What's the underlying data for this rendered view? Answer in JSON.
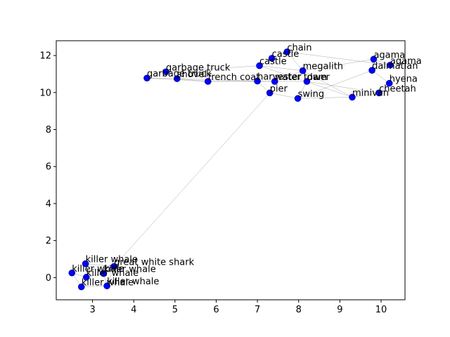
{
  "chart_data": {
    "type": "scatter",
    "title": "",
    "xlabel": "",
    "ylabel": "",
    "xlim": [
      2.12,
      10.58
    ],
    "ylim": [
      -1.2,
      12.8
    ],
    "xticks": [
      3,
      4,
      5,
      6,
      7,
      8,
      9,
      10
    ],
    "yticks": [
      0,
      2,
      4,
      6,
      8,
      10,
      12
    ],
    "grid": false,
    "colors": {
      "point": "#0000ff",
      "edge": "#999999"
    },
    "points": [
      {
        "label": "killer whale",
        "x": 2.83,
        "y": 0.75
      },
      {
        "label": "killer whale",
        "x": 2.5,
        "y": 0.25
      },
      {
        "label": "killer whale",
        "x": 2.85,
        "y": 0.02
      },
      {
        "label": "killer whale",
        "x": 3.27,
        "y": 0.22
      },
      {
        "label": "killer whale",
        "x": 2.73,
        "y": -0.5
      },
      {
        "label": "killer whale",
        "x": 3.35,
        "y": -0.45
      },
      {
        "label": "great white shark",
        "x": 3.52,
        "y": 0.6
      },
      {
        "label": "garbage truck",
        "x": 4.78,
        "y": 11.12
      },
      {
        "label": "garbage truck",
        "x": 4.32,
        "y": 10.78
      },
      {
        "label": "shovel",
        "x": 5.05,
        "y": 10.75
      },
      {
        "label": "french coat",
        "x": 5.8,
        "y": 10.6
      },
      {
        "label": "harvester",
        "x": 7.0,
        "y": 10.62
      },
      {
        "label": "castle",
        "x": 7.05,
        "y": 11.45
      },
      {
        "label": "castle",
        "x": 7.35,
        "y": 11.85
      },
      {
        "label": "chain",
        "x": 7.72,
        "y": 12.2
      },
      {
        "label": "pier",
        "x": 7.3,
        "y": 9.98
      },
      {
        "label": "water tower",
        "x": 7.42,
        "y": 10.6
      },
      {
        "label": "megalith",
        "x": 8.1,
        "y": 11.18
      },
      {
        "label": "dam",
        "x": 8.2,
        "y": 10.6
      },
      {
        "label": "swing",
        "x": 7.98,
        "y": 9.68
      },
      {
        "label": "minivan",
        "x": 9.3,
        "y": 9.75
      },
      {
        "label": "agama",
        "x": 9.82,
        "y": 11.8
      },
      {
        "label": "agama",
        "x": 10.22,
        "y": 11.48
      },
      {
        "label": "dalmatian",
        "x": 9.78,
        "y": 11.2
      },
      {
        "label": "hyena",
        "x": 10.2,
        "y": 10.5
      },
      {
        "label": "cheetah",
        "x": 9.95,
        "y": 9.98
      }
    ],
    "edges": [
      [
        0,
        1
      ],
      [
        0,
        2
      ],
      [
        0,
        3
      ],
      [
        1,
        2
      ],
      [
        1,
        4
      ],
      [
        2,
        3
      ],
      [
        2,
        4
      ],
      [
        3,
        5
      ],
      [
        4,
        5
      ],
      [
        3,
        6
      ],
      [
        5,
        6
      ],
      [
        0,
        6
      ],
      [
        6,
        15
      ],
      [
        7,
        8
      ],
      [
        7,
        9
      ],
      [
        8,
        9
      ],
      [
        8,
        10
      ],
      [
        9,
        10
      ],
      [
        9,
        11
      ],
      [
        10,
        11
      ],
      [
        7,
        12
      ],
      [
        10,
        16
      ],
      [
        11,
        15
      ],
      [
        11,
        16
      ],
      [
        12,
        13
      ],
      [
        13,
        14
      ],
      [
        12,
        17
      ],
      [
        14,
        17
      ],
      [
        15,
        16
      ],
      [
        15,
        19
      ],
      [
        16,
        17
      ],
      [
        16,
        18
      ],
      [
        17,
        18
      ],
      [
        18,
        19
      ],
      [
        17,
        20
      ],
      [
        19,
        20
      ],
      [
        18,
        25
      ],
      [
        17,
        21
      ],
      [
        14,
        22
      ],
      [
        21,
        22
      ],
      [
        21,
        23
      ],
      [
        22,
        23
      ],
      [
        23,
        24
      ],
      [
        24,
        25
      ],
      [
        20,
        25
      ],
      [
        23,
        19
      ],
      [
        12,
        20
      ]
    ]
  }
}
